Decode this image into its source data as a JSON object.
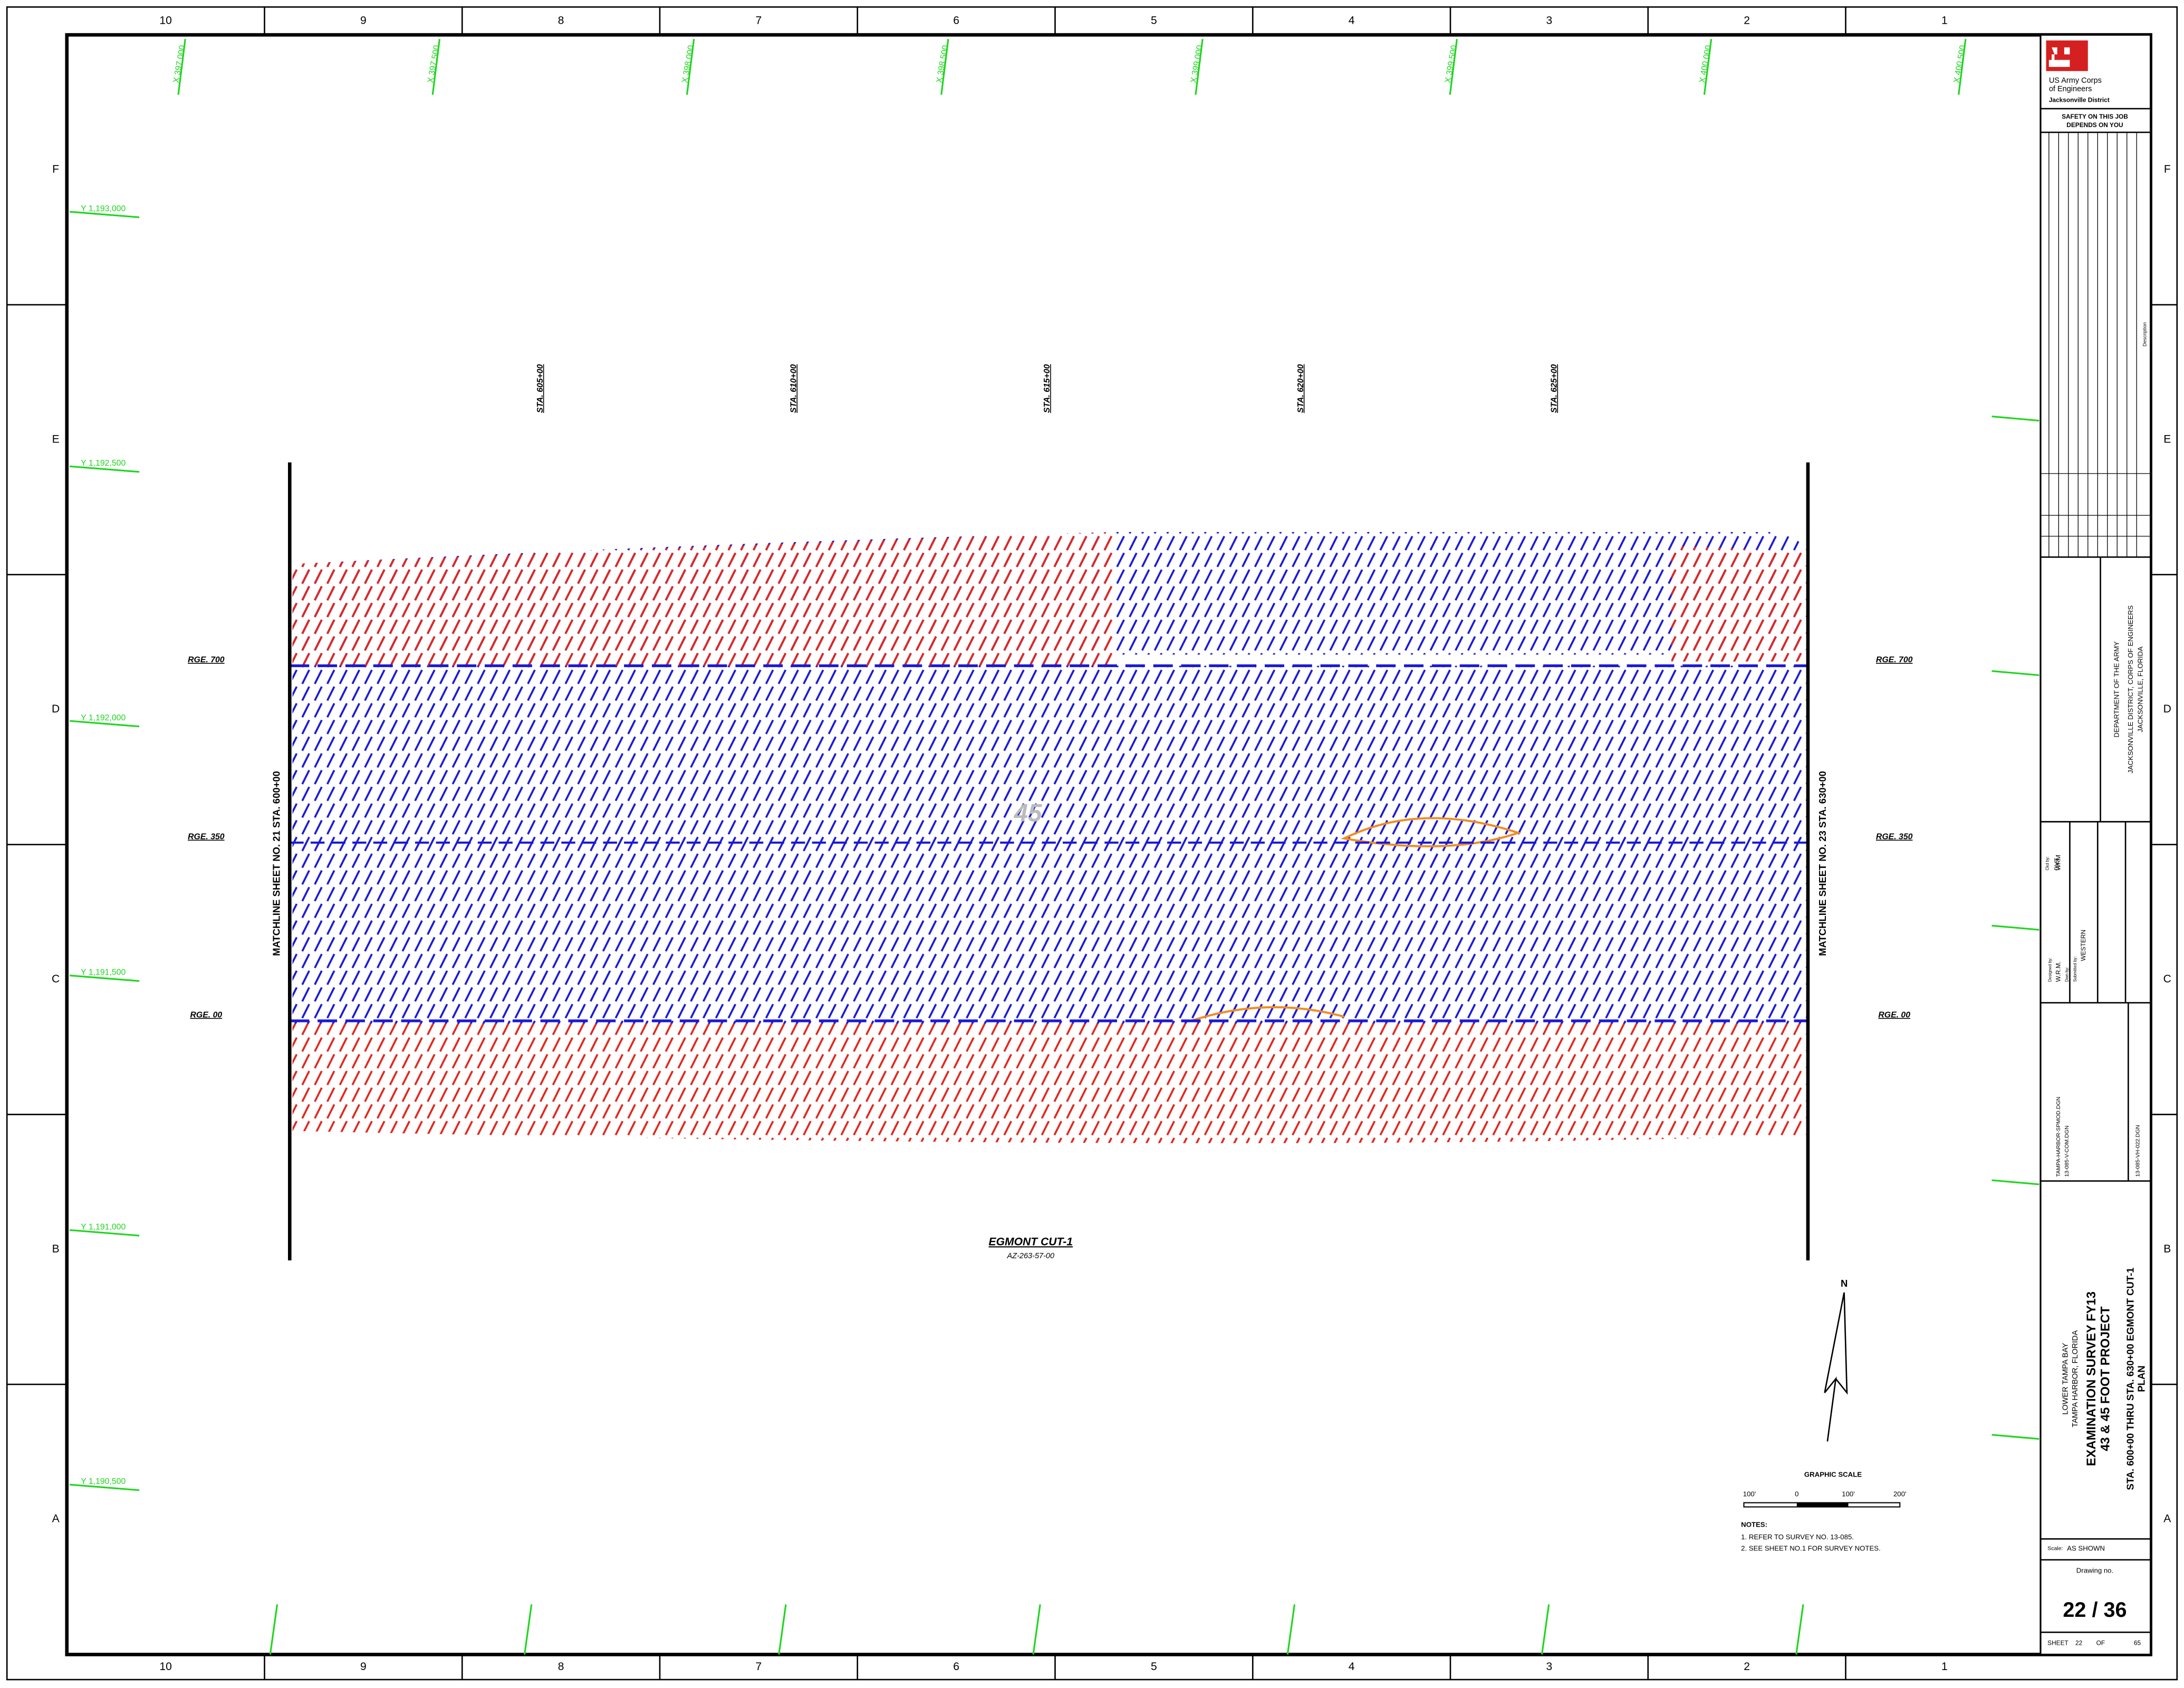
{
  "border": {
    "columns": [
      "10",
      "9",
      "8",
      "7",
      "6",
      "5",
      "4",
      "3",
      "2",
      "1"
    ],
    "rows": [
      "F",
      "E",
      "D",
      "C",
      "B",
      "A"
    ]
  },
  "coordinates": {
    "x": [
      "X 397,000",
      "X 397,500",
      "X 398,000",
      "X 398,500",
      "X 399,000",
      "X 399,500",
      "X 400,000",
      "X 400,500"
    ],
    "y": [
      "Y 1,193,000",
      "Y 1,192,500",
      "Y 1,192,000",
      "Y 1,191,500",
      "Y 1,191,000",
      "Y 1,190,500"
    ]
  },
  "plan": {
    "stations": [
      "STA. 605+00",
      "STA. 610+00",
      "STA. 615+00",
      "STA. 620+00",
      "STA. 625+00"
    ],
    "ranges": [
      "RGE. 700",
      "RGE. 350",
      "RGE. 00"
    ],
    "matchline_left": "MATCHLINE SHEET NO. 21 STA. 600+00",
    "matchline_right": "MATCHLINE SHEET NO. 23 STA. 630+00",
    "depth_label": "45",
    "channel_name": "EGMONT CUT-1",
    "azimuth": "AZ-263-57-00",
    "north": "N"
  },
  "graphic_scale": {
    "title": "GRAPHIC SCALE",
    "labels": [
      "100'",
      "0",
      "100'",
      "200'"
    ]
  },
  "notes": {
    "title": "NOTES:",
    "items": [
      "1. REFER TO SURVEY NO. 13-085.",
      "2. SEE SHEET NO.1 FOR SURVEY NOTES."
    ]
  },
  "title_block": {
    "agency": [
      "US Army Corps",
      "of Engineers"
    ],
    "district": "Jacksonville District",
    "safety": [
      "SAFETY ON THIS JOB",
      "DEPENDS ON YOU"
    ],
    "revision_header": "Description",
    "department": [
      "DEPARTMENT OF THE ARMY",
      "JACKSONVILLE DISTRICT, CORPS OF ENGINEERS",
      "JACKSONVILLE, FLORIDA"
    ],
    "people": [
      "Designed by:",
      "W.R.M.",
      "Dwn by:",
      "WRM",
      "Ckd by:",
      "DVT",
      "Submitted by:",
      "WESTERN"
    ],
    "reference_files": [
      "13-085-VH-022.DGN",
      "TAMPA-HARBOR-SPMOD.DGN",
      "13-085-V-COM.DGN"
    ],
    "project": [
      "LOWER TAMPA BAY",
      "TAMPA HARBOR, FLORIDA",
      "EXAMINATION SURVEY FY13",
      "43 & 45 FOOT PROJECT",
      "STA. 600+00 THRU STA. 630+00 EGMONT CUT-1",
      "PLAN"
    ],
    "scale_label": "Scale:",
    "scale": "AS SHOWN",
    "drawing_label": "Drawing no.",
    "drawing_no": "22 / 36",
    "sheet": [
      "SHEET",
      "22",
      "OF",
      "65"
    ]
  }
}
